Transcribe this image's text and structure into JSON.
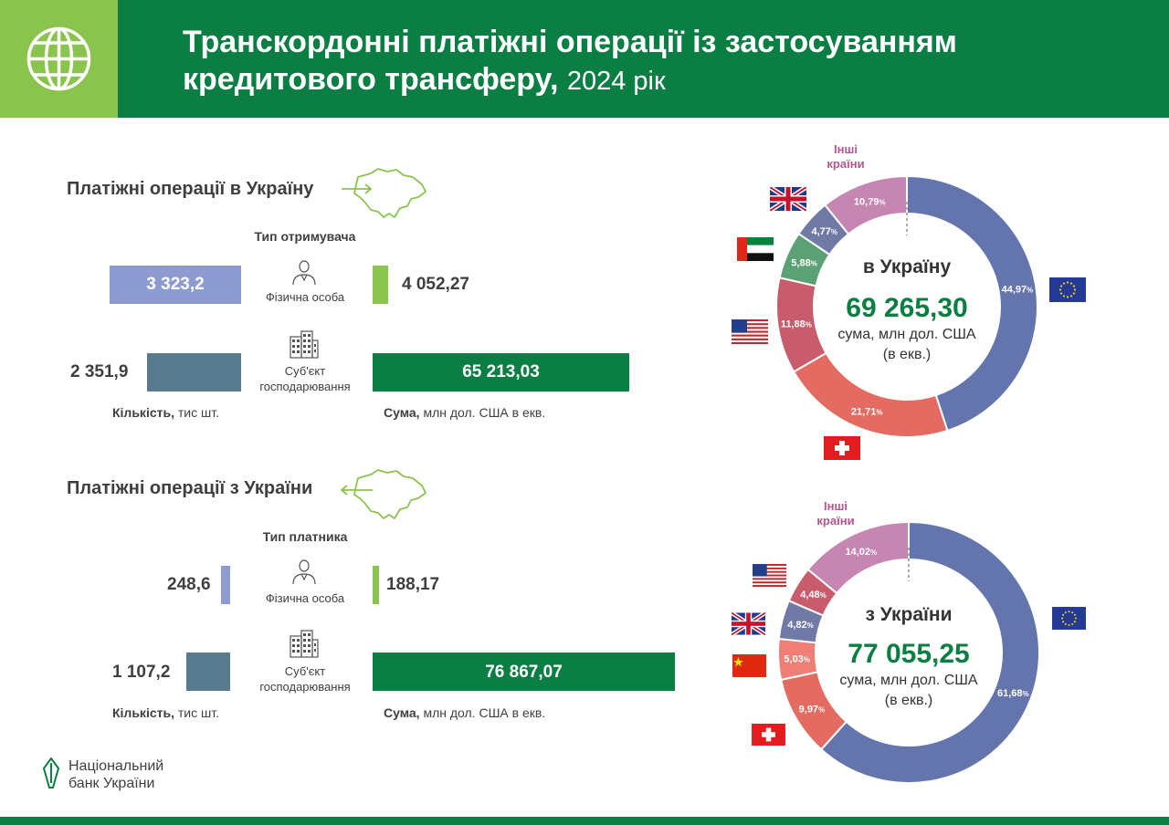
{
  "header": {
    "title": "Транскордонні платіжні операції із застосуванням кредитового трансферу,",
    "year": "2024 рік"
  },
  "incoming": {
    "title": "Платіжні операції в Україну",
    "type_head": "Тип отримувача",
    "individual_label": "Фізична особа",
    "business_label": "Суб'єкт господарювання",
    "count_individual": "3 323,2",
    "count_business": "2 351,9",
    "sum_individual": "4 052,27",
    "sum_business": "65 213,03",
    "count_caption_bold": "Кількість,",
    "count_caption_rest": " тис шт.",
    "sum_caption_bold": "Сума,",
    "sum_caption_rest": " млн дол. США в екв."
  },
  "outgoing": {
    "title": "Платіжні операції з України",
    "type_head": "Тип платника",
    "individual_label": "Фізична особа",
    "business_label": "Суб'єкт господарювання",
    "count_individual": "248,6",
    "count_business": "1 107,2",
    "sum_individual": "188,17",
    "sum_business": "76 867,07",
    "count_caption_bold": "Кількість,",
    "count_caption_rest": " тис шт.",
    "sum_caption_bold": "Сума,",
    "sum_caption_rest": " млн дол. США в екв."
  },
  "colors": {
    "green": "#0a7e43",
    "light_green": "#8bc34f",
    "light_blue": "#8e9bd0",
    "slate": "#577a8f",
    "eu": "#6475ad",
    "ch": "#e46b62",
    "us": "#c95c6c",
    "ae": "#5ca176",
    "gb": "#707aa5",
    "cn": "#ef7f76",
    "other": "#c586b1"
  },
  "chart_data": [
    {
      "type": "pie",
      "title": "в Україну",
      "total": "69 265,30",
      "unit": "сума, млн дол. США (в екв.)",
      "unit_line1": "сума, млн дол. США",
      "unit_line2": "(в екв.)",
      "other_label_line1": "Інші",
      "other_label_line2": "країни",
      "slices": [
        {
          "country": "EU",
          "value": 44.97,
          "label": "44,97",
          "color": "#6475ad",
          "flag": "eu"
        },
        {
          "country": "CH",
          "value": 21.71,
          "label": "21,71",
          "color": "#e46b62",
          "flag": "ch"
        },
        {
          "country": "US",
          "value": 11.88,
          "label": "11,88",
          "color": "#c95c6c",
          "flag": "us"
        },
        {
          "country": "AE",
          "value": 5.88,
          "label": "5,88",
          "color": "#5ca176",
          "flag": "ae"
        },
        {
          "country": "GB",
          "value": 4.77,
          "label": "4,77",
          "color": "#707aa5",
          "flag": "gb"
        },
        {
          "country": "Other",
          "value": 10.79,
          "label": "10,79",
          "color": "#c586b1",
          "flag": ""
        }
      ]
    },
    {
      "type": "pie",
      "title": "з України",
      "total": "77 055,25",
      "unit": "сума, млн дол. США (в екв.)",
      "unit_line1": "сума, млн дол. США",
      "unit_line2": "(в екв.)",
      "other_label_line1": "Інші",
      "other_label_line2": "країни",
      "slices": [
        {
          "country": "EU",
          "value": 61.68,
          "label": "61,68%",
          "color": "#6475ad",
          "flag": "eu"
        },
        {
          "country": "CH",
          "value": 9.97,
          "label": "9,97%",
          "color": "#e46b62",
          "flag": "ch"
        },
        {
          "country": "CN",
          "value": 5.03,
          "label": "5,03%",
          "color": "#ef7f76",
          "flag": "cn"
        },
        {
          "country": "GB",
          "value": 4.82,
          "label": "4,82%",
          "color": "#707aa5",
          "flag": "gb"
        },
        {
          "country": "US",
          "value": 4.48,
          "label": "4,48%",
          "color": "#c95c6c",
          "flag": "us"
        },
        {
          "country": "Other",
          "value": 14.02,
          "label": "14,02%",
          "color": "#c586b1",
          "flag": ""
        }
      ]
    }
  ],
  "footer": {
    "bank_line1": "Національний",
    "bank_line2": "банк України"
  }
}
